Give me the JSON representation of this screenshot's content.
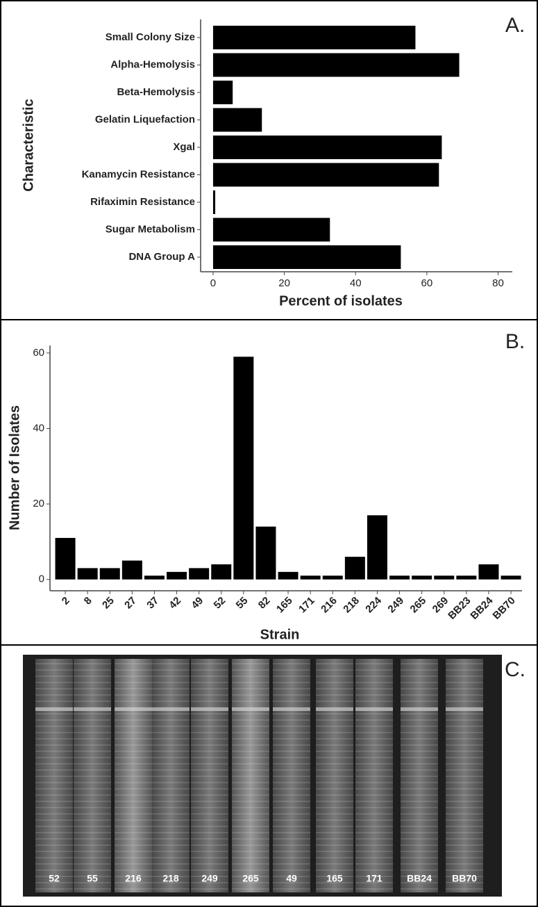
{
  "chart_data": [
    {
      "type": "bar",
      "orientation": "horizontal",
      "label": "A.",
      "xlabel": "Percent of isolates",
      "ylabel": "Characteristic",
      "categories": [
        "Small Colony Size",
        "Alpha-Hemolysis",
        "Beta-Hemolysis",
        "Gelatin Liquefaction",
        "Xgal",
        "Kanamycin Resistance",
        "Rifaximin Resistance",
        "Sugar Metabolism",
        "DNA Group A"
      ],
      "values": [
        56.8,
        69.1,
        5.5,
        13.7,
        64.2,
        63.4,
        0.6,
        32.8,
        52.7
      ],
      "color": "#000000",
      "xlim": [
        -3.5,
        84
      ],
      "xticks": [
        0,
        20,
        40,
        60,
        80
      ],
      "grid": false
    },
    {
      "type": "bar",
      "orientation": "vertical",
      "label": "B.",
      "xlabel": "Strain",
      "ylabel": "Number of Isolates",
      "categories": [
        "2",
        "8",
        "25",
        "27",
        "37",
        "42",
        "49",
        "52",
        "55",
        "82",
        "165",
        "171",
        "216",
        "218",
        "224",
        "249",
        "265",
        "269",
        "BB23",
        "BB24",
        "BB70"
      ],
      "values": [
        11,
        3,
        3,
        5,
        1,
        2,
        3,
        4,
        59,
        14,
        2,
        1,
        1,
        6,
        17,
        1,
        1,
        1,
        1,
        4,
        1
      ],
      "color": "#000000",
      "ylim": [
        -3,
        62
      ],
      "yticks": [
        0,
        20,
        40,
        60
      ],
      "grid": false
    }
  ],
  "gel": {
    "label": "C.",
    "lanes": [
      "52",
      "55",
      "216",
      "218",
      "249",
      "265",
      "49",
      "165",
      "171",
      "BB24",
      "BB70"
    ]
  }
}
